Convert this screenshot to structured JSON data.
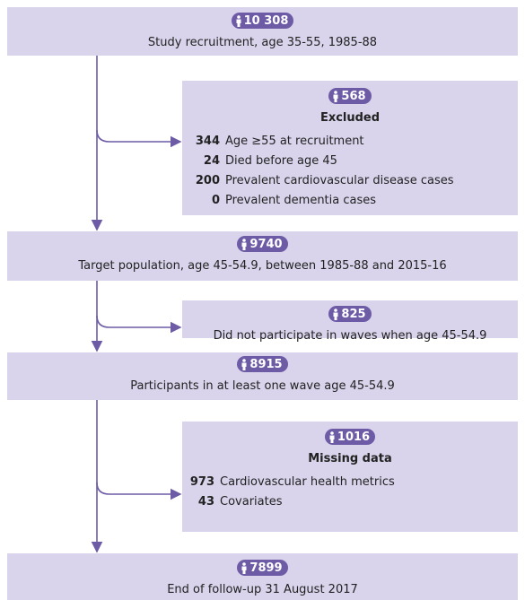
{
  "nodes": [
    {
      "badge": "10 308",
      "text": "Study recruitment, age 35-55, 1985-88"
    },
    {
      "badge": "568",
      "heading": "Excluded",
      "items": [
        {
          "count": "344",
          "label": "Age ≥55 at recruitment"
        },
        {
          "count": "24",
          "label": "Died before age 45"
        },
        {
          "count": "200",
          "label": "Prevalent cardiovascular disease cases"
        },
        {
          "count": "0",
          "label": "Prevalent dementia cases"
        }
      ]
    },
    {
      "badge": "9740",
      "text": "Target population, age 45-54.9, between 1985-88 and 2015-16"
    },
    {
      "badge": "825",
      "text": "Did not participate in waves when age 45-54.9"
    },
    {
      "badge": "8915",
      "text": "Participants in at least one wave age 45-54.9"
    },
    {
      "badge": "1016",
      "heading": "Missing data",
      "items": [
        {
          "count": "973",
          "label": "Cardiovascular health metrics"
        },
        {
          "count": "43",
          "label": "Covariates"
        }
      ]
    },
    {
      "badge": "7899",
      "text": "End of follow-up 31 August 2017"
    }
  ]
}
